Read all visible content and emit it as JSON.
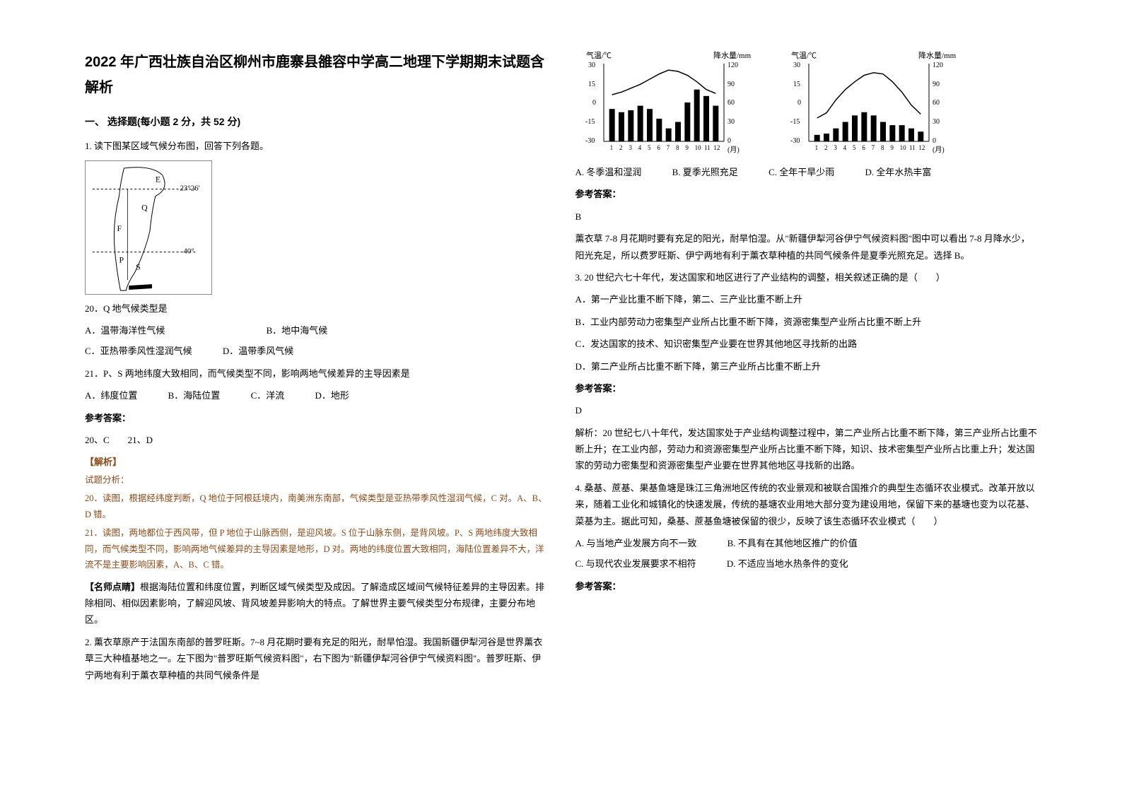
{
  "title": "2022 年广西壮族自治区柳州市鹿寨县雒容中学高二地理下学期期末试题含解析",
  "section1_heading": "一、 选择题(每小题 2 分，共 52 分)",
  "q1_intro": "1. 读下图某区域气候分布图，回答下列各题。",
  "map": {
    "lat1": "23°26'",
    "lat2": "40°",
    "labels": [
      "E",
      "Q",
      "F",
      "P",
      "S"
    ]
  },
  "q20_text": "20．Q 地气候类型是",
  "q20_opts": {
    "A": "A．温带海洋性气候",
    "B": "B．地中海气候",
    "C": "C．亚热带季风性湿润气候",
    "D": "D．温带季风气候"
  },
  "q21_text": "21．P、S 两地纬度大致相同，而气候类型不同，影响两地气候差异的主导因素是",
  "q21_opts": {
    "A": "A．纬度位置",
    "B": "B．海陆位置",
    "C": "C．洋流",
    "D": "D．地形"
  },
  "ans_label": "参考答案：",
  "q1_ans": "20、C　　21、D",
  "analysis_label": "【解析】",
  "analysis_sub_label": "试题分析：",
  "q1_a20": "20．读图，根据经纬度判断，Q 地位于阿根廷境内，南美洲东南部，气候类型是亚热带季风性湿润气候，C 对。A、B、D 错。",
  "q1_a21": "21．读图，两地都位于西风带，但 P 地位于山脉西侧，是迎风坡。S 位于山脉东侧，是背风坡。P、S 两地纬度大致相同，而气候类型不同，影响两地气候差异的主导因素是地形，D 对。两地的纬度位置大致相同，海陆位置差异不大，洋流不是主要影响因素，A、B、C 错。",
  "q1_tip_label": "【名师点睛】",
  "q1_tip": "根据海陆位置和纬度位置，判断区域气候类型及成因。了解造成区域间气候特征差异的主导因素。排除相同、相似因素影响，了解迎风坡、背风坡差异影响大的特点。了解世界主要气候类型分布规律，主要分布地区。",
  "q2_intro": "2. 薰衣草原产于法国东南部的普罗旺斯。7~8 月花期时要有充足的阳光，耐旱怕湿。我国新疆伊犁河谷是世界薰衣草三大种植基地之一。左下图为\"普罗旺斯气候资料图\"，右下图为\"新疆伊犁河谷伊宁气候资料图\"。普罗旺斯、伊宁两地有利于薰衣草种植的共同气候条件是",
  "chart_axes": {
    "temp_label": "气温/℃",
    "precip_label": "降水量/mm",
    "temp_ticks": [
      30,
      15,
      0,
      -15,
      -30
    ],
    "precip_ticks": [
      120,
      90,
      60,
      30,
      0
    ],
    "month_ticks": [
      1,
      2,
      3,
      4,
      5,
      6,
      7,
      8,
      9,
      10,
      11,
      12
    ],
    "month_suffix": "(月)"
  },
  "chart_left": {
    "temp": [
      6,
      8,
      11,
      14,
      18,
      22,
      25,
      24,
      21,
      16,
      10,
      7
    ],
    "precip": [
      50,
      45,
      48,
      55,
      50,
      35,
      20,
      30,
      60,
      80,
      70,
      55
    ],
    "temp_color": "#000000",
    "bar_color": "#000000",
    "bg": "#ffffff"
  },
  "chart_right": {
    "temp": [
      -12,
      -8,
      2,
      10,
      16,
      21,
      23,
      22,
      16,
      8,
      -2,
      -9
    ],
    "precip": [
      10,
      12,
      20,
      30,
      40,
      45,
      40,
      30,
      25,
      25,
      20,
      15
    ],
    "temp_color": "#000000",
    "bar_color": "#000000",
    "bg": "#ffffff"
  },
  "q2_opts": {
    "A": "A.  冬季温和湿润",
    "B": "B.  夏季光照充足",
    "C": "C.  全年干旱少雨",
    "D": "D.  全年水热丰富"
  },
  "q2_ans": "B",
  "q2_explain": "薰衣草 7-8 月花期时要有充足的阳光，耐旱怕湿。从\"新疆伊犁河谷伊宁气候资料图\"图中可以看出 7-8 月降水少，阳光充足，所以费罗旺斯、伊宁两地有利于薰衣草种植的共同气候条件是夏季光照充足。选择 B。",
  "q3_intro": "3. 20 世纪六七十年代，发达国家和地区进行了产业结构的调整，相关叙述正确的是（　　）",
  "q3_opts": {
    "A": "A．第一产业比重不断下降，第二、三产业比重不断上升",
    "B": "B．工业内部劳动力密集型产业所占比重不断下降，资源密集型产业所占比重不断上升",
    "C": "C．发达国家的技术、知识密集型产业要在世界其他地区寻找新的出路",
    "D": "D．第二产业所占比重不断下降，第三产业所占比重不断上升"
  },
  "q3_ans": "D",
  "q3_explain": "解析：20 世纪七八十年代，发达国家处于产业结构调整过程中，第二产业所占比重不断下降，第三产业所占比重不断上升；在工业内部，劳动力和资源密集型产业所占比重不断下降，知识、技术密集型产业所占比重上升；发达国家的劳动力密集型和资源密集型产业要在世界其他地区寻找新的出路。",
  "q4_intro": "4. 桑基、蔗基、果基鱼塘是珠江三角洲地区传统的农业景观和被联合国推介的典型生态循环农业模式。改革开放以来，随着工业化和城镇化的快速发展，传统的基塘农业用地大部分变为建设用地，保留下来的基塘也变为以花基、菜基为主。据此可知，桑基、蔗基鱼塘被保留的很少，反映了该生态循环农业模式（　　）",
  "q4_opts": {
    "A": "A.  与当地产业发展方向不一致",
    "B": "B.  不具有在其他地区推广的价值",
    "C": "C.  与现代农业发展要求不相符",
    "D": "D.  不适应当地水热条件的变化"
  }
}
